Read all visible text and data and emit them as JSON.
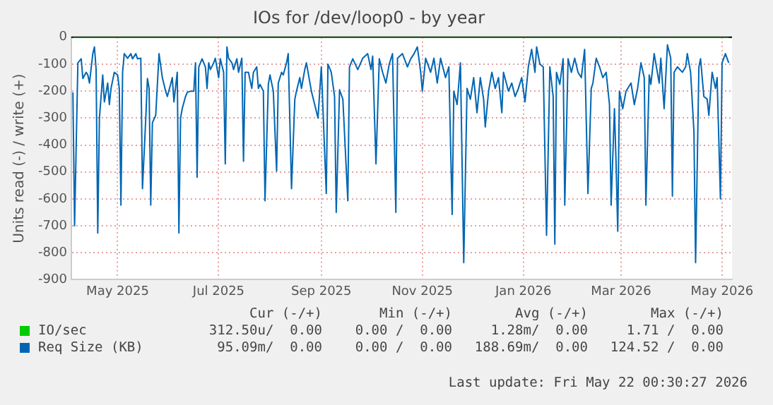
{
  "chart_data": {
    "type": "line",
    "title": "IOs for /dev/loop0 - by year",
    "ylabel": "Units read (-) / write (+)",
    "xlim": [
      "2025-04-03",
      "2026-05-07"
    ],
    "xticks": [
      {
        "value": "2025-05-01",
        "label": "May 2025"
      },
      {
        "value": "2025-07-01",
        "label": "Jul 2025"
      },
      {
        "value": "2025-09-01",
        "label": "Sep 2025"
      },
      {
        "value": "2025-11-01",
        "label": "Nov 2025"
      },
      {
        "value": "2026-01-01",
        "label": "Jan 2026"
      },
      {
        "value": "2026-03-01",
        "label": "Mar 2026"
      },
      {
        "value": "2026-05-01",
        "label": "May 2026"
      }
    ],
    "ylim": [
      -900,
      0
    ],
    "yticks": [
      0,
      -100,
      -200,
      -300,
      -400,
      -500,
      -600,
      -700,
      -800,
      -900
    ],
    "grid": true,
    "legend": "bottom",
    "marker": "none",
    "line_style": "solid",
    "ref_lines": [
      {
        "axis": "y",
        "value": 0,
        "color": "#000000"
      }
    ],
    "series": [
      {
        "name": "IO/sec",
        "color": "#00cc00",
        "x": [
          "2025-04-04",
          "2026-05-05"
        ],
        "values": [
          0,
          0
        ]
      },
      {
        "name": "Req Size (KB)",
        "color": "#0066b3",
        "x": [
          "2025-04-04",
          "2025-04-05",
          "2025-04-07",
          "2025-04-09",
          "2025-04-10",
          "2025-04-12",
          "2025-04-13",
          "2025-04-14",
          "2025-04-16",
          "2025-04-17",
          "2025-04-18",
          "2025-04-19",
          "2025-04-20",
          "2025-04-22",
          "2025-04-23",
          "2025-04-25",
          "2025-04-26",
          "2025-04-27",
          "2025-04-29",
          "2025-05-01",
          "2025-05-02",
          "2025-05-03",
          "2025-05-04",
          "2025-05-05",
          "2025-05-07",
          "2025-05-09",
          "2025-05-10",
          "2025-05-12",
          "2025-05-13",
          "2025-05-15",
          "2025-05-16",
          "2025-05-18",
          "2025-05-19",
          "2025-05-20",
          "2025-05-21",
          "2025-05-22",
          "2025-05-24",
          "2025-05-26",
          "2025-05-28",
          "2025-05-30",
          "2025-05-31",
          "2025-06-02",
          "2025-06-03",
          "2025-06-04",
          "2025-06-06",
          "2025-06-07",
          "2025-06-08",
          "2025-06-09",
          "2025-06-11",
          "2025-06-12",
          "2025-06-14",
          "2025-06-16",
          "2025-06-17",
          "2025-06-18",
          "2025-06-19",
          "2025-06-21",
          "2025-06-23",
          "2025-06-24",
          "2025-06-25",
          "2025-06-26",
          "2025-06-28",
          "2025-06-29",
          "2025-07-01",
          "2025-07-02",
          "2025-07-04",
          "2025-07-05",
          "2025-07-06",
          "2025-07-07",
          "2025-07-09",
          "2025-07-10",
          "2025-07-12",
          "2025-07-13",
          "2025-07-15",
          "2025-07-16",
          "2025-07-17",
          "2025-07-19",
          "2025-07-21",
          "2025-07-22",
          "2025-07-24",
          "2025-07-25",
          "2025-07-26",
          "2025-07-28",
          "2025-07-29",
          "2025-07-31",
          "2025-08-01",
          "2025-08-03",
          "2025-08-05",
          "2025-08-06",
          "2025-08-08",
          "2025-08-09",
          "2025-08-11",
          "2025-08-12",
          "2025-08-14",
          "2025-08-16",
          "2025-08-17",
          "2025-08-19",
          "2025-08-20",
          "2025-08-22",
          "2025-08-23",
          "2025-08-26",
          "2025-08-30",
          "2025-09-01",
          "2025-09-04",
          "2025-09-05",
          "2025-09-07",
          "2025-09-09",
          "2025-09-10",
          "2025-09-12",
          "2025-09-14",
          "2025-09-17",
          "2025-09-18",
          "2025-09-20",
          "2025-09-23",
          "2025-09-26",
          "2025-09-29",
          "2025-10-01",
          "2025-10-02",
          "2025-10-04",
          "2025-10-06",
          "2025-10-08",
          "2025-10-10",
          "2025-10-12",
          "2025-10-14",
          "2025-10-16",
          "2025-10-17",
          "2025-10-20",
          "2025-10-23",
          "2025-10-25",
          "2025-10-27",
          "2025-10-29",
          "2025-10-31",
          "2025-11-01",
          "2025-11-03",
          "2025-11-06",
          "2025-11-08",
          "2025-11-10",
          "2025-11-12",
          "2025-11-15",
          "2025-11-17",
          "2025-11-19",
          "2025-11-20",
          "2025-11-22",
          "2025-11-24",
          "2025-11-26",
          "2025-11-28",
          "2025-11-30",
          "2025-12-02",
          "2025-12-04",
          "2025-12-06",
          "2025-12-08",
          "2025-12-09",
          "2025-12-11",
          "2025-12-13",
          "2025-12-15",
          "2025-12-17",
          "2025-12-19",
          "2025-12-20",
          "2025-12-23",
          "2025-12-25",
          "2025-12-27",
          "2025-12-29",
          "2025-12-31",
          "2026-01-02",
          "2026-01-04",
          "2026-01-06",
          "2026-01-08",
          "2026-01-09",
          "2026-01-11",
          "2026-01-13",
          "2026-01-15",
          "2026-01-17",
          "2026-01-19",
          "2026-01-20",
          "2026-01-21",
          "2026-01-23",
          "2026-01-25",
          "2026-01-26",
          "2026-01-28",
          "2026-01-30",
          "2026-02-01",
          "2026-02-03",
          "2026-02-05",
          "2026-02-07",
          "2026-02-09",
          "2026-02-11",
          "2026-02-12",
          "2026-02-14",
          "2026-02-16",
          "2026-02-18",
          "2026-02-20",
          "2026-02-22",
          "2026-02-23",
          "2026-02-25",
          "2026-02-26",
          "2026-02-27",
          "2026-02-28",
          "2026-03-02",
          "2026-03-04",
          "2026-03-07",
          "2026-03-09",
          "2026-03-11",
          "2026-03-13",
          "2026-03-15",
          "2026-03-16",
          "2026-03-18",
          "2026-03-19",
          "2026-03-21",
          "2026-03-24",
          "2026-03-25",
          "2026-03-27",
          "2026-03-29",
          "2026-03-31",
          "2026-04-01",
          "2026-04-02",
          "2026-04-04",
          "2026-04-07",
          "2026-04-09",
          "2026-04-10",
          "2026-04-12",
          "2026-04-14",
          "2026-04-15",
          "2026-04-17",
          "2026-04-18",
          "2026-04-20",
          "2026-04-22",
          "2026-04-23",
          "2026-04-25",
          "2026-04-27",
          "2026-04-28",
          "2026-04-30",
          "2026-05-01",
          "2026-05-03",
          "2026-05-05"
        ],
        "values": [
          -205,
          -700,
          -95,
          -80,
          -153,
          -130,
          -140,
          -170,
          -61,
          -36,
          -120,
          -727,
          -300,
          -140,
          -240,
          -170,
          -250,
          -190,
          -130,
          -140,
          -190,
          -623,
          -130,
          -61,
          -78,
          -61,
          -80,
          -61,
          -80,
          -78,
          -562,
          -300,
          -153,
          -190,
          -623,
          -317,
          -290,
          -61,
          -150,
          -200,
          -220,
          -175,
          -150,
          -240,
          -130,
          -727,
          -300,
          -265,
          -220,
          -205,
          -200,
          -200,
          -95,
          -520,
          -110,
          -80,
          -110,
          -190,
          -95,
          -120,
          -95,
          -78,
          -150,
          -80,
          -130,
          -470,
          -36,
          -78,
          -95,
          -120,
          -80,
          -130,
          -78,
          -460,
          -130,
          -130,
          -190,
          -130,
          -110,
          -190,
          -175,
          -200,
          -607,
          -175,
          -140,
          -200,
          -497,
          -170,
          -130,
          -140,
          -95,
          -61,
          -562,
          -230,
          -200,
          -150,
          -190,
          -120,
          -95,
          -200,
          -300,
          -110,
          -580,
          -100,
          -130,
          -220,
          -650,
          -195,
          -230,
          -607,
          -110,
          -80,
          -120,
          -78,
          -61,
          -120,
          -70,
          -470,
          -80,
          -130,
          -170,
          -100,
          -61,
          -650,
          -78,
          -61,
          -110,
          -80,
          -61,
          -36,
          -130,
          -200,
          -78,
          -130,
          -78,
          -170,
          -78,
          -150,
          -110,
          -658,
          -200,
          -250,
          -95,
          -837,
          -190,
          -230,
          -150,
          -280,
          -150,
          -230,
          -333,
          -200,
          -130,
          -190,
          -150,
          -280,
          -130,
          -200,
          -170,
          -220,
          -190,
          -150,
          -240,
          -110,
          -45,
          -130,
          -36,
          -100,
          -110,
          -735,
          -110,
          -220,
          -768,
          -130,
          -175,
          -80,
          -623,
          -80,
          -130,
          -78,
          -130,
          -150,
          -45,
          -580,
          -190,
          -170,
          -78,
          -110,
          -150,
          -130,
          -250,
          -623,
          -265,
          -470,
          -720,
          -200,
          -265,
          -200,
          -170,
          -250,
          -190,
          -95,
          -150,
          -623,
          -140,
          -175,
          -61,
          -170,
          -78,
          -265,
          -28,
          -78,
          -590,
          -130,
          -110,
          -130,
          -110,
          -61,
          -130,
          -350,
          -837,
          -110,
          -80,
          -220,
          -230,
          -290,
          -130,
          -190,
          -150,
          -600,
          -95,
          -61,
          -95
        ]
      }
    ],
    "annotations": [
      "Cur (-/+)",
      "Min (-/+)",
      "Avg (-/+)",
      "Max (-/+)",
      "312.50u/  0.00",
      "0.00 /  0.00",
      "1.28m/  0.00",
      "1.71 /  0.00",
      "95.09m/  0.00",
      "0.00 /  0.00",
      "188.69m/  0.00",
      "124.52 /  0.00",
      "Last update: Fri May 22 00:30:27 2026"
    ]
  }
}
